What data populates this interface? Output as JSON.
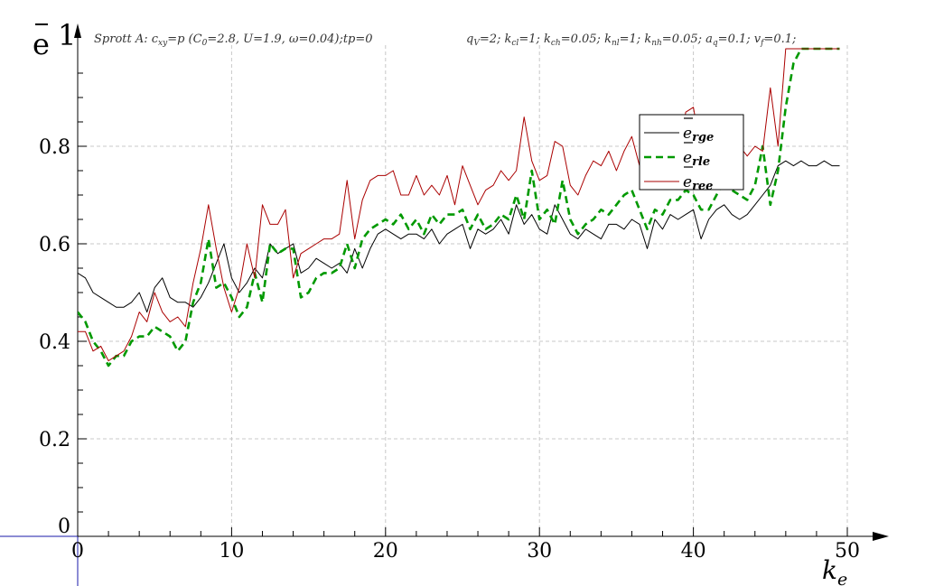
{
  "chart_data": {
    "type": "line",
    "title_left": "Sprott A: c_xy=p (C_0=2.8, U=1.9, ω=0.04);tp=0",
    "title_right": "q_V=2; k_cl=1; k_ch=0.05; k_nl=1; k_nh=0.05; a_q=0.1; v_f=0.1;",
    "title_left_parts": [
      "Sprott A: c",
      "xy",
      "=p (C",
      "0",
      "=2.8, U=1.9, ω=0.04);tp=0"
    ],
    "title_right_parts": [
      "q",
      "V",
      "=2; k",
      "cl",
      "=1; k",
      "ch",
      "=0.05; k",
      "nl",
      "=1; k",
      "nh",
      "=0.05; a",
      "q",
      "=0.1; v",
      "f",
      "=0.1;"
    ],
    "xlabel_main": "k",
    "xlabel_sub": "e",
    "ylabel": "e",
    "y_top_label": "1",
    "xlim": [
      0,
      50
    ],
    "ylim": [
      0,
      1
    ],
    "x_ticks": [
      0,
      10,
      20,
      30,
      40,
      50
    ],
    "x_tick_labels": [
      "0",
      "10",
      "20",
      "30",
      "40",
      "50"
    ],
    "y_ticks": [
      0.2,
      0.4,
      0.6,
      0.8
    ],
    "y_tick_labels": [
      "0.2",
      "0.4",
      "0.6",
      "0.8"
    ],
    "y_zero_label": "0",
    "grid": true,
    "legend_position": "top-right",
    "colors": {
      "rge": "#000000",
      "rle": "#009900",
      "ree": "#aa0000"
    },
    "x": [
      0,
      0.5,
      1,
      1.5,
      2,
      2.5,
      3,
      3.5,
      4,
      4.5,
      5,
      5.5,
      6,
      6.5,
      7,
      7.5,
      8,
      8.5,
      9,
      9.5,
      10,
      10.5,
      11,
      11.5,
      12,
      12.5,
      13,
      13.5,
      14,
      14.5,
      15,
      15.5,
      16,
      16.5,
      17,
      17.5,
      18,
      18.5,
      19,
      19.5,
      20,
      20.5,
      21,
      21.5,
      22,
      22.5,
      23,
      23.5,
      24,
      24.5,
      25,
      25.5,
      26,
      26.5,
      27,
      27.5,
      28,
      28.5,
      29,
      29.5,
      30,
      30.5,
      31,
      31.5,
      32,
      32.5,
      33,
      33.5,
      34,
      34.5,
      35,
      35.5,
      36,
      36.5,
      37,
      37.5,
      38,
      38.5,
      39,
      39.5,
      40,
      40.5,
      41,
      41.5,
      42,
      42.5,
      43,
      43.5,
      44,
      44.5,
      45,
      45.5,
      46,
      46.5,
      47,
      47.5,
      48,
      48.5,
      49,
      49.5
    ],
    "series": [
      {
        "key": "rge",
        "name_main": "e",
        "name_sub": "rge",
        "values": [
          0.54,
          0.53,
          0.5,
          0.49,
          0.48,
          0.47,
          0.47,
          0.48,
          0.5,
          0.46,
          0.51,
          0.53,
          0.49,
          0.48,
          0.48,
          0.47,
          0.49,
          0.52,
          0.56,
          0.6,
          0.53,
          0.5,
          0.52,
          0.55,
          0.53,
          0.6,
          0.58,
          0.59,
          0.6,
          0.54,
          0.55,
          0.57,
          0.56,
          0.55,
          0.56,
          0.54,
          0.59,
          0.55,
          0.59,
          0.62,
          0.63,
          0.62,
          0.61,
          0.62,
          0.62,
          0.61,
          0.63,
          0.6,
          0.62,
          0.63,
          0.64,
          0.59,
          0.63,
          0.62,
          0.63,
          0.65,
          0.62,
          0.68,
          0.64,
          0.66,
          0.63,
          0.62,
          0.68,
          0.65,
          0.62,
          0.61,
          0.63,
          0.62,
          0.61,
          0.64,
          0.64,
          0.63,
          0.65,
          0.64,
          0.59,
          0.65,
          0.63,
          0.66,
          0.65,
          0.66,
          0.67,
          0.61,
          0.65,
          0.67,
          0.68,
          0.66,
          0.65,
          0.66,
          0.68,
          0.7,
          0.72,
          0.76,
          0.77,
          0.76,
          0.77,
          0.76,
          0.76,
          0.77,
          0.76,
          0.76
        ]
      },
      {
        "key": "rle",
        "name_main": "e",
        "name_sub": "rle",
        "values": [
          0.46,
          0.44,
          0.4,
          0.38,
          0.35,
          0.37,
          0.37,
          0.4,
          0.41,
          0.41,
          0.43,
          0.42,
          0.41,
          0.38,
          0.4,
          0.48,
          0.52,
          0.61,
          0.51,
          0.52,
          0.49,
          0.45,
          0.47,
          0.54,
          0.48,
          0.6,
          0.58,
          0.59,
          0.59,
          0.49,
          0.5,
          0.53,
          0.54,
          0.54,
          0.55,
          0.6,
          0.55,
          0.61,
          0.63,
          0.64,
          0.65,
          0.64,
          0.66,
          0.63,
          0.65,
          0.62,
          0.66,
          0.64,
          0.66,
          0.66,
          0.67,
          0.63,
          0.66,
          0.63,
          0.64,
          0.66,
          0.65,
          0.7,
          0.65,
          0.75,
          0.65,
          0.67,
          0.64,
          0.73,
          0.65,
          0.62,
          0.64,
          0.65,
          0.67,
          0.66,
          0.68,
          0.7,
          0.71,
          0.67,
          0.63,
          0.67,
          0.66,
          0.69,
          0.69,
          0.71,
          0.7,
          0.67,
          0.67,
          0.7,
          0.73,
          0.71,
          0.7,
          0.69,
          0.72,
          0.8,
          0.68,
          0.75,
          0.88,
          0.97,
          1.0,
          1.0,
          1.0,
          1.0,
          1.0,
          1.0
        ]
      },
      {
        "key": "ree",
        "name_main": "e",
        "name_sub": "ree",
        "values": [
          0.42,
          0.42,
          0.38,
          0.39,
          0.36,
          0.37,
          0.38,
          0.41,
          0.46,
          0.44,
          0.5,
          0.46,
          0.44,
          0.45,
          0.43,
          0.52,
          0.59,
          0.68,
          0.59,
          0.51,
          0.46,
          0.51,
          0.6,
          0.53,
          0.68,
          0.64,
          0.64,
          0.67,
          0.53,
          0.58,
          0.59,
          0.6,
          0.61,
          0.61,
          0.62,
          0.73,
          0.61,
          0.69,
          0.73,
          0.74,
          0.74,
          0.75,
          0.7,
          0.7,
          0.74,
          0.7,
          0.72,
          0.7,
          0.74,
          0.68,
          0.76,
          0.72,
          0.68,
          0.71,
          0.72,
          0.75,
          0.73,
          0.75,
          0.86,
          0.77,
          0.73,
          0.74,
          0.81,
          0.8,
          0.72,
          0.7,
          0.74,
          0.77,
          0.76,
          0.79,
          0.75,
          0.79,
          0.82,
          0.76,
          0.74,
          0.79,
          0.77,
          0.73,
          0.77,
          0.87,
          0.88,
          0.79,
          0.78,
          0.8,
          0.82,
          0.8,
          0.8,
          0.78,
          0.8,
          0.79,
          0.92,
          0.8,
          1.0,
          1.0,
          1.0,
          1.0,
          1.0,
          1.0,
          1.0,
          1.0
        ]
      }
    ]
  }
}
